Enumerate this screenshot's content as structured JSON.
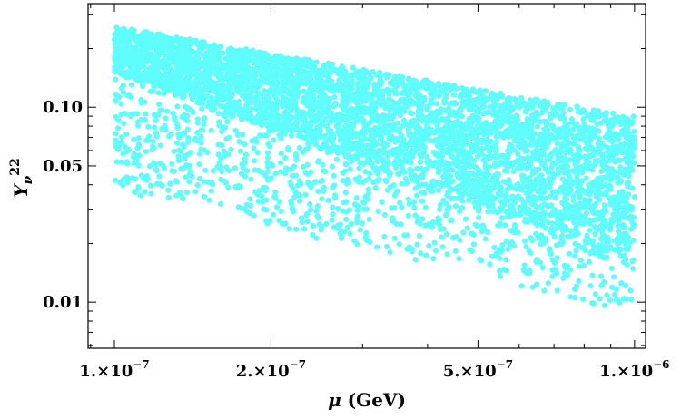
{
  "chart_data": {
    "type": "scatter",
    "title": "",
    "xlabel": {
      "symbol": "μ",
      "rest": " (GeV)"
    },
    "ylabel": {
      "base": "Y",
      "sub": "ν",
      "sup": "22"
    },
    "x_scale": "log",
    "y_scale": "log",
    "xlim": [
      8.9e-08,
      1.05e-06
    ],
    "ylim": [
      0.0058,
      0.34
    ],
    "x_ticks": [
      {
        "value": 1e-07,
        "mantissa": "1.×10",
        "exponent": "−7"
      },
      {
        "value": 2e-07,
        "mantissa": "2.×10",
        "exponent": "−7"
      },
      {
        "value": 5e-07,
        "mantissa": "5.×10",
        "exponent": "−7"
      },
      {
        "value": 1e-06,
        "mantissa": "1.×10",
        "exponent": "−6"
      }
    ],
    "y_ticks": [
      {
        "value": 0.1,
        "label": "0.10"
      },
      {
        "value": 0.05,
        "label": "0.05"
      },
      {
        "value": 0.01,
        "label": "0.01"
      }
    ],
    "grid": false,
    "legend": "none",
    "series": [
      {
        "color": "#5ffcfc",
        "description_of_region": {
          "x_range": [
            1e-07,
            1e-06
          ],
          "upper_edge": [
            [
              1e-07,
              0.26
            ],
            [
              1e-06,
              0.09
            ]
          ],
          "lower_edge": [
            [
              1e-07,
              0.038
            ],
            [
              1e-06,
              0.0085
            ]
          ],
          "dense_core_lower_edge": [
            [
              1e-07,
              0.15
            ],
            [
              1e-06,
              0.016
            ]
          ]
        }
      }
    ]
  }
}
